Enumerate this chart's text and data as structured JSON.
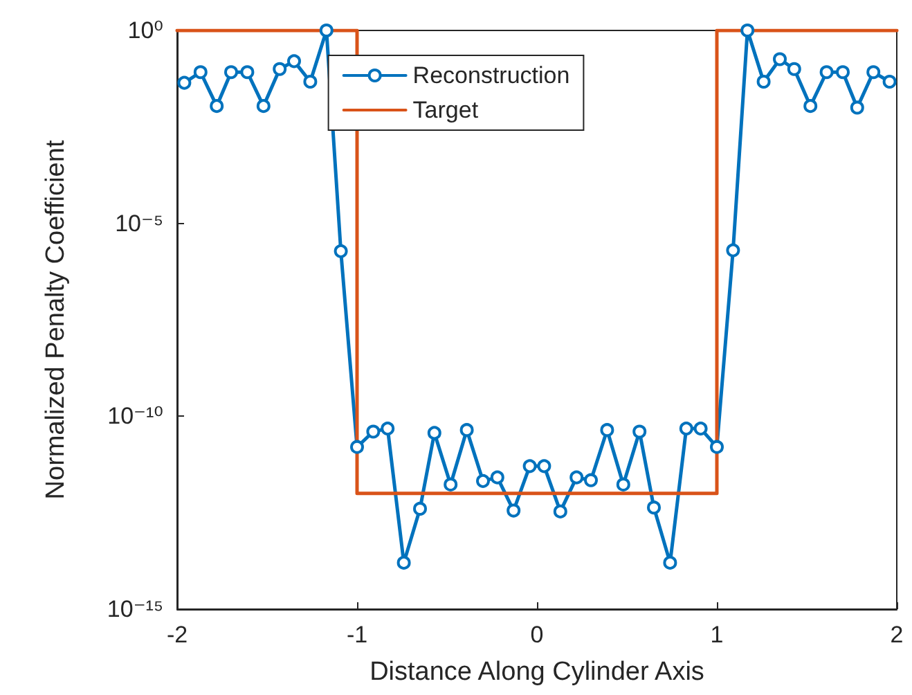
{
  "chart_data": {
    "type": "line",
    "xlabel": "Distance Along Cylinder Axis",
    "ylabel": "Normalized Penalty Coefficient",
    "log": "y",
    "grid": false,
    "legend": "top",
    "xlim": [
      -2,
      2
    ],
    "xticks": [
      -2,
      -1,
      0,
      1,
      2
    ],
    "ylim": [
      1e-15,
      1
    ],
    "yticks": [
      {
        "value": 1e-15,
        "label": "10⁻¹⁵"
      },
      {
        "value": 1e-10,
        "label": "10⁻¹⁰"
      },
      {
        "value": 1e-05,
        "label": "10⁻⁵"
      },
      {
        "value": 1,
        "label": "10⁰"
      }
    ],
    "series": [
      {
        "name": "Reconstruction",
        "color": "#0072bd",
        "marker": "circle",
        "line_style": "solid",
        "x": [
          -1.96,
          -1.87,
          -1.78,
          -1.7,
          -1.61,
          -1.52,
          -1.43,
          -1.35,
          -1.26,
          -1.17,
          -1.09,
          -1.0,
          -0.91,
          -0.83,
          -0.74,
          -0.65,
          -0.57,
          -0.48,
          -0.39,
          -0.3,
          -0.22,
          -0.13,
          -0.04,
          0.04,
          0.13,
          0.22,
          0.3,
          0.39,
          0.48,
          0.57,
          0.65,
          0.74,
          0.83,
          0.91,
          1.0,
          1.09,
          1.17,
          1.26,
          1.35,
          1.43,
          1.52,
          1.61,
          1.7,
          1.78,
          1.87,
          1.96
        ],
        "values": [
          0.044,
          0.083,
          0.011,
          0.083,
          0.083,
          0.011,
          0.1,
          0.16,
          0.047,
          1,
          1.9e-06,
          1.6e-11,
          4e-11,
          4.8e-11,
          1.6e-14,
          4e-13,
          3.7e-11,
          1.7e-12,
          4.4e-11,
          2.1e-12,
          2.6e-12,
          3.6e-13,
          5.1e-12,
          5.1e-12,
          3.4e-13,
          2.6e-12,
          2.2e-12,
          4.4e-11,
          1.7e-12,
          4e-11,
          4.3e-13,
          1.6e-14,
          4.8e-11,
          4.8e-11,
          1.6e-11,
          2e-06,
          1,
          0.047,
          0.18,
          0.1,
          0.011,
          0.083,
          0.083,
          0.01,
          0.083,
          0.047
        ]
      },
      {
        "name": "Target",
        "color": "#d95319",
        "marker": "none",
        "line_style": "solid",
        "x": [
          -2,
          -1,
          -1,
          1,
          1,
          2
        ],
        "values": [
          1,
          1,
          1e-12,
          1e-12,
          1,
          1
        ]
      }
    ]
  }
}
